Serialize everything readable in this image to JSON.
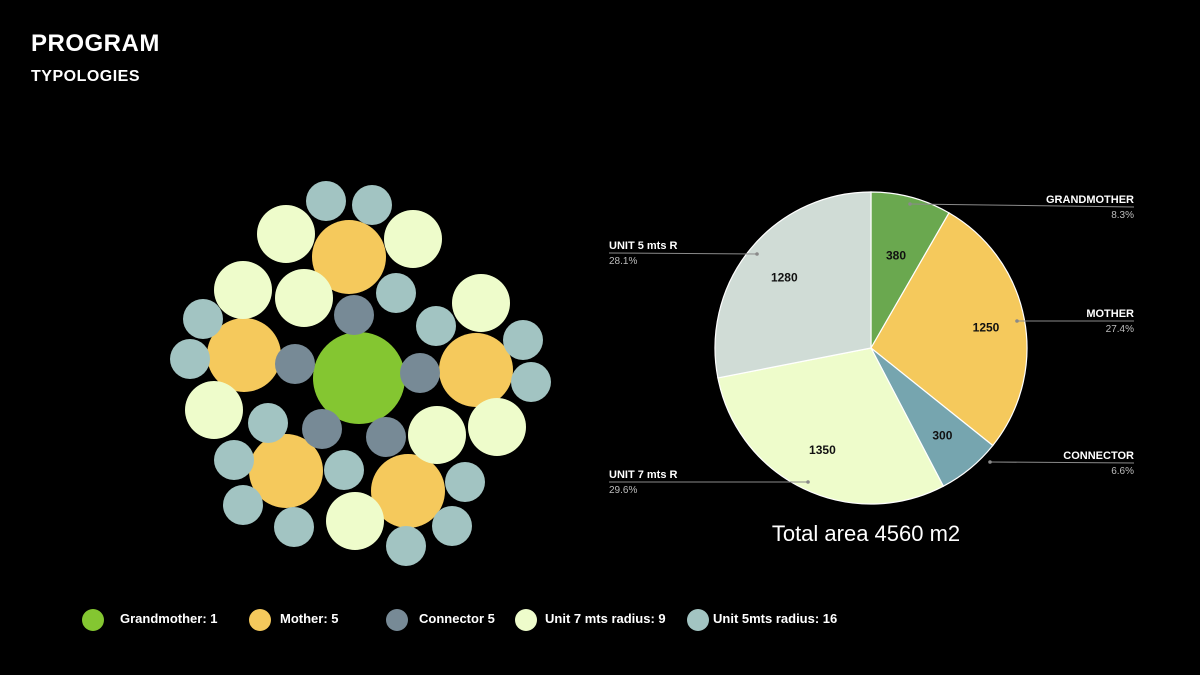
{
  "header": {
    "title": "PROGRAM",
    "subtitle": "TYPOLOGIES"
  },
  "colors": {
    "grandmother_pie": "#6aa84f",
    "mother": "#f5c95c",
    "connector_pie": "#76a5af",
    "unit7": "#eefccb",
    "unit5_pie": "#d0dcd6",
    "grandmother_diagram": "#84c631",
    "connector_diagram": "#778a96",
    "unit5_diagram": "#a2c4c2",
    "unit7_diagram": "#eefccb"
  },
  "legend": [
    {
      "label": "Grandmother: 1",
      "color": "#84c631"
    },
    {
      "label": "Mother: 5",
      "color": "#f5c95c"
    },
    {
      "label": "Connector 5",
      "color": "#778a96"
    },
    {
      "label": "Unit 7 mts radius: 9",
      "color": "#eefccb"
    },
    {
      "label": "Unit 5mts radius: 16",
      "color": "#a2c4c2"
    }
  ],
  "chart_data": {
    "type": "pie",
    "title": "Total area 4560 m2",
    "categories": [
      "GRANDMOTHER",
      "MOTHER",
      "CONNECTOR",
      "UNIT 7 mts R",
      "UNIT 5 mts R"
    ],
    "values": [
      380,
      1250,
      300,
      1350,
      1280
    ],
    "value_labels": [
      "380",
      "1250",
      "300",
      "1350",
      "1280"
    ],
    "percentages": [
      "8.3%",
      "27.4%",
      "6.6%",
      "29.6%",
      "28.1%"
    ],
    "colors": [
      "#6aa84f",
      "#f5c95c",
      "#76a5af",
      "#eefccb",
      "#d0dcd6"
    ]
  }
}
